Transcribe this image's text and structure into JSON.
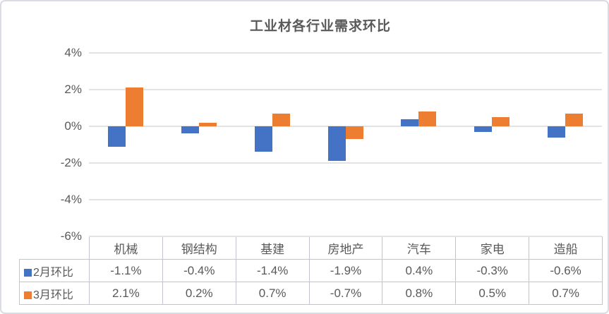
{
  "card": {
    "background": "#ffffff",
    "border_color": "#d9dce2"
  },
  "chart_data": {
    "type": "bar",
    "title": "工业材各行业需求环比",
    "categories": [
      "机械",
      "钢结构",
      "基建",
      "房地产",
      "汽车",
      "家电",
      "造船"
    ],
    "series": [
      {
        "name": "2月环比",
        "color": "#4472C4",
        "values": [
          -1.1,
          -0.4,
          -1.4,
          -1.9,
          0.4,
          -0.3,
          -0.6
        ],
        "labels": [
          "-1.1%",
          "-0.4%",
          "-1.4%",
          "-1.9%",
          "0.4%",
          "-0.3%",
          "-0.6%"
        ]
      },
      {
        "name": "3月环比",
        "color": "#ED7D31",
        "values": [
          2.1,
          0.2,
          0.7,
          -0.7,
          0.8,
          0.5,
          0.7
        ],
        "labels": [
          "2.1%",
          "0.2%",
          "0.7%",
          "-0.7%",
          "0.8%",
          "0.5%",
          "0.7%"
        ]
      }
    ],
    "y_axis": {
      "unit": "%",
      "ylim": [
        -6,
        4
      ],
      "tick_labels": [
        "4%",
        "2%",
        "0%",
        "-2%",
        "-4%",
        "-6%"
      ],
      "tick_values": [
        4,
        2,
        0,
        -2,
        -4,
        -6
      ]
    },
    "grid": true,
    "gridline_color": "#e3e3e3",
    "legend_position": "data-table-rows",
    "text_color": "#595959",
    "table_border_color": "#c1c5cb"
  }
}
